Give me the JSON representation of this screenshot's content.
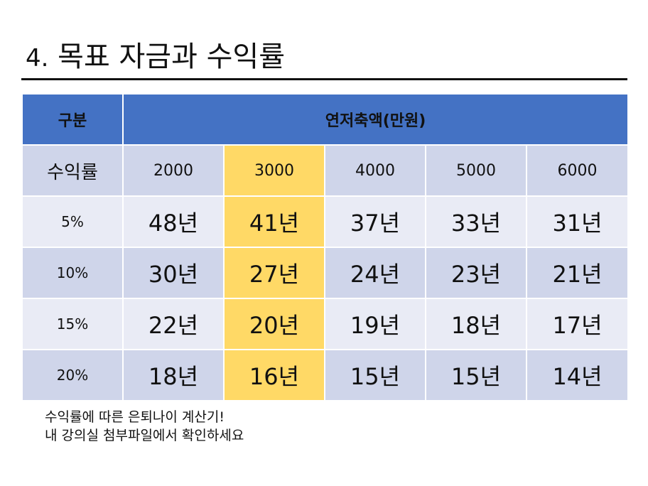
{
  "title": {
    "number": "4.",
    "text": "목표 자금과 수익률"
  },
  "table": {
    "header": {
      "category": "구분",
      "group": "연저축액(만원)"
    },
    "rate_label": "수익률",
    "amounts": [
      "2000",
      "3000",
      "4000",
      "5000",
      "6000"
    ],
    "highlighted_amount": "3000",
    "rows": [
      {
        "rate": "5%",
        "years": [
          "48년",
          "41년",
          "37년",
          "33년",
          "31년"
        ]
      },
      {
        "rate": "10%",
        "years": [
          "30년",
          "27년",
          "24년",
          "23년",
          "21년"
        ]
      },
      {
        "rate": "15%",
        "years": [
          "22년",
          "20년",
          "19년",
          "18년",
          "17년"
        ]
      },
      {
        "rate": "20%",
        "years": [
          "18년",
          "16년",
          "15년",
          "15년",
          "14년"
        ]
      }
    ]
  },
  "note": {
    "line1": "수익률에 따른 은퇴나이 계산기!",
    "line2": "내 강의실 첨부파일에서 확인하세요"
  },
  "colors": {
    "header_blue": "#4472c4",
    "band_dark": "#cfd5ea",
    "band_light": "#e9ebf5",
    "highlight_yellow": "#ffd966"
  }
}
